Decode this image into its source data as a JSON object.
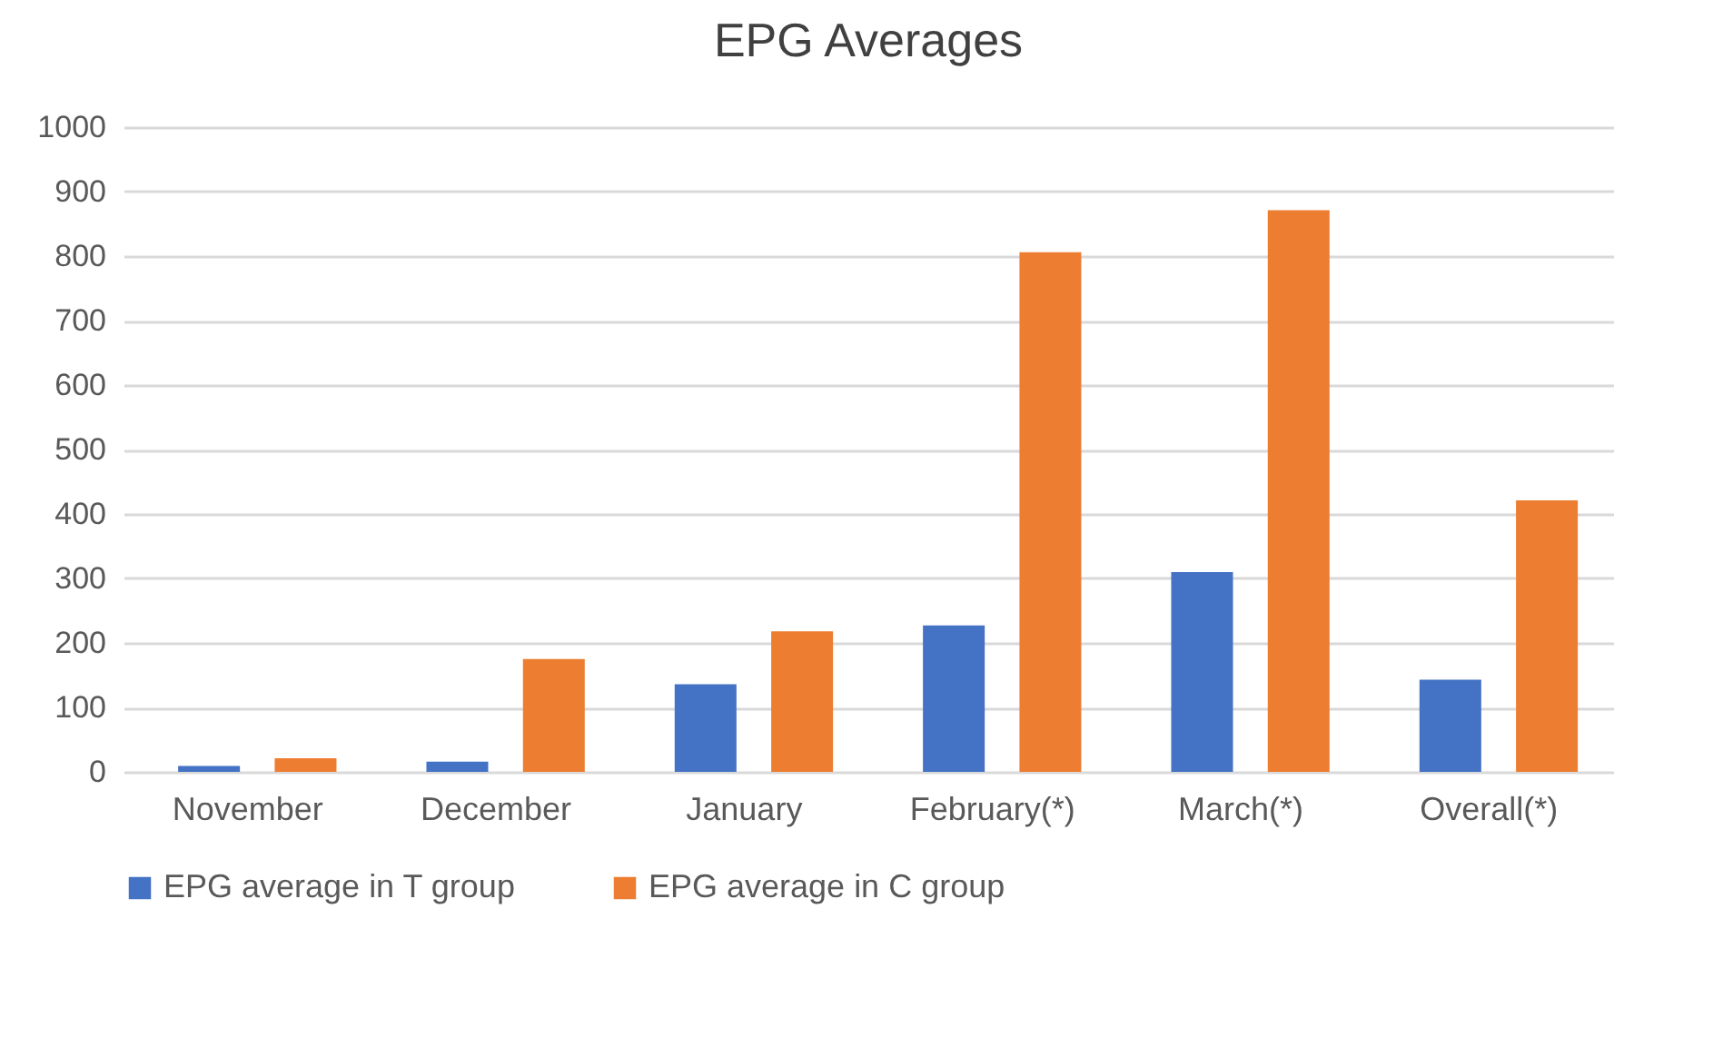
{
  "chart_data": {
    "type": "bar",
    "title": "EPG Averages",
    "categories": [
      "November",
      "December",
      "January",
      "February(*)",
      "March(*)",
      "Overall(*)"
    ],
    "series": [
      {
        "name": "EPG average in T group",
        "color": "#4472c4",
        "values": [
          9,
          16,
          136,
          227,
          310,
          143
        ]
      },
      {
        "name": "EPG average in C group",
        "color": "#ed7d31",
        "values": [
          21,
          175,
          218,
          806,
          871,
          421
        ]
      }
    ],
    "ylim": [
      0,
      1000
    ],
    "yticks": [
      0,
      100,
      200,
      300,
      400,
      500,
      600,
      700,
      800,
      900,
      1000
    ],
    "grid": "y",
    "legend": "bottom"
  }
}
